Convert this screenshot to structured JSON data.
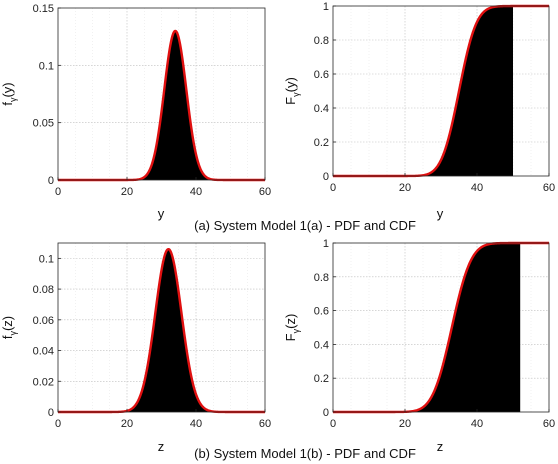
{
  "captions": {
    "a": "(a) System Model 1(a) - PDF and CDF",
    "b": "(b) System Model 1(b) - PDF and CDF"
  },
  "colors": {
    "curve": "#e01010",
    "fill": "#000000",
    "grid": "#bdbdbd",
    "axes": "#262626"
  },
  "chart_data": [
    {
      "id": "pdf-a",
      "type": "area",
      "xlabel": "y",
      "ylabel": "f_γ(y)",
      "xlim": [
        0,
        60
      ],
      "ylim": [
        0,
        0.15
      ],
      "xticks": [
        0,
        20,
        40,
        60
      ],
      "yticks": [
        0,
        0.05,
        0.1,
        0.15
      ],
      "ytick_labels": [
        "0",
        "0.05",
        "0.1",
        "0.15"
      ],
      "grid": true,
      "series": [
        {
          "kind": "normal-pdf",
          "mean": 34,
          "peak": 0.13,
          "sd": 3.2,
          "shaded": true
        }
      ]
    },
    {
      "id": "cdf-a",
      "type": "area",
      "xlabel": "y",
      "ylabel": "F_γ(y)",
      "xlim": [
        0,
        60
      ],
      "ylim": [
        0,
        1
      ],
      "xticks": [
        0,
        20,
        40,
        60
      ],
      "yticks": [
        0,
        0.2,
        0.4,
        0.6,
        0.8,
        1
      ],
      "ytick_labels": [
        "0",
        "0.2",
        "0.4",
        "0.6",
        "0.8",
        "1"
      ],
      "grid": true,
      "series": [
        {
          "kind": "normal-cdf",
          "mean": 35,
          "sd": 3.8,
          "shaded_upto": 50
        }
      ]
    },
    {
      "id": "pdf-b",
      "type": "area",
      "xlabel": "z",
      "ylabel": "f_γ(z)",
      "xlim": [
        0,
        60
      ],
      "ylim": [
        0,
        0.11
      ],
      "xticks": [
        0,
        20,
        40,
        60
      ],
      "yticks": [
        0,
        0.02,
        0.04,
        0.06,
        0.08,
        0.1
      ],
      "ytick_labels": [
        "0",
        "0.02",
        "0.04",
        "0.06",
        "0.08",
        "0.1"
      ],
      "grid": true,
      "series": [
        {
          "kind": "normal-pdf",
          "mean": 32,
          "peak": 0.106,
          "sd": 3.8,
          "shaded": true
        }
      ]
    },
    {
      "id": "cdf-b",
      "type": "area",
      "xlabel": "z",
      "ylabel": "F_γ(z)",
      "xlim": [
        0,
        60
      ],
      "ylim": [
        0,
        1
      ],
      "xticks": [
        0,
        20,
        40,
        60
      ],
      "yticks": [
        0,
        0.2,
        0.4,
        0.6,
        0.8,
        1
      ],
      "ytick_labels": [
        "0",
        "0.2",
        "0.4",
        "0.6",
        "0.8",
        "1"
      ],
      "grid": true,
      "series": [
        {
          "kind": "normal-cdf",
          "mean": 33,
          "sd": 4.2,
          "shaded_upto": 52
        }
      ]
    }
  ]
}
